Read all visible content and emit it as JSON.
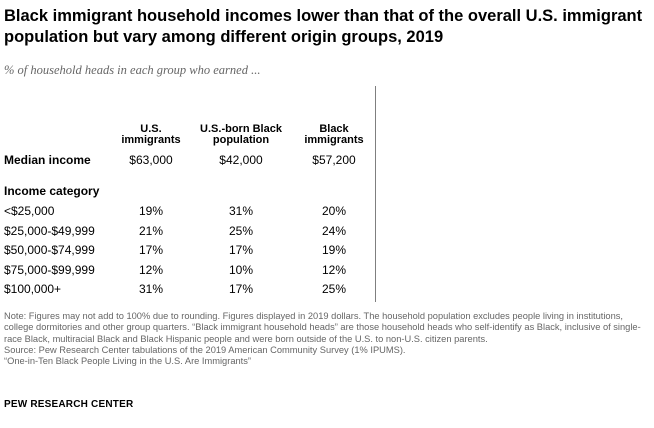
{
  "chart_data": {
    "type": "table",
    "title": "Black immigrant household incomes lower than that of the overall U.S. immigrant population but vary among different origin groups, 2019",
    "subtitle": "% of household heads in each group who earned ...",
    "columns": [
      "U.S. immigrants",
      "U.S.-born Black population",
      "Black immigrants"
    ],
    "median_row": {
      "label": "Median income",
      "values": [
        "$63,000",
        "$42,000",
        "$57,200"
      ]
    },
    "category_header": "Income category",
    "rows": [
      {
        "label": "<$25,000",
        "values": [
          "19%",
          "31%",
          "20%"
        ]
      },
      {
        "label": "$25,000-$49,999",
        "values": [
          "21%",
          "25%",
          "24%"
        ]
      },
      {
        "label": "$50,000-$74,999",
        "values": [
          "17%",
          "17%",
          "19%"
        ]
      },
      {
        "label": "$75,000-$99,999",
        "values": [
          "12%",
          "10%",
          "12%"
        ]
      },
      {
        "label": "$100,000+",
        "values": [
          "31%",
          "17%",
          "25%"
        ]
      }
    ]
  },
  "notes": {
    "note": "Note: Figures may not add to 100% due to rounding. Figures displayed in 2019 dollars. The household population excludes people living in institutions, college dormitories and other group quarters. “Black immigrant household heads” are those household heads who self-identify as Black, inclusive of single-race Black, multiracial Black and Black Hispanic people and were born outside of the U.S. to non-U.S. citizen parents.",
    "source": "Source: Pew Research Center tabulations of the 2019 American Community Survey (1% IPUMS).",
    "report": "“One-in-Ten Black People Living in the U.S. Are Immigrants”"
  },
  "brand": "PEW RESEARCH CENTER"
}
